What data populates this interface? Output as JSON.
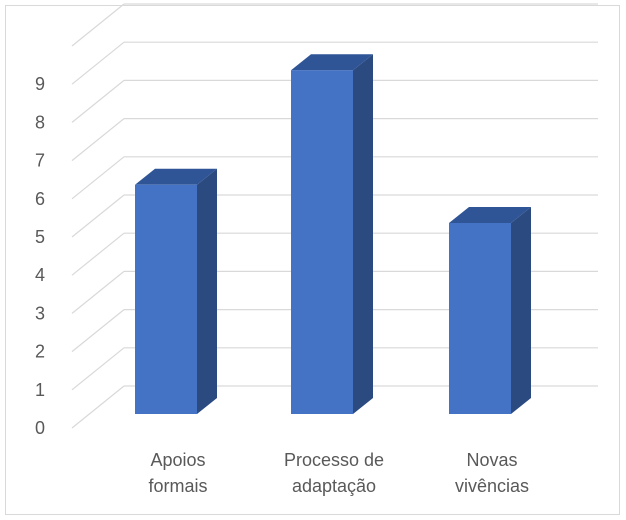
{
  "chart_data": {
    "type": "bar",
    "style": "3d-column",
    "categories": [
      [
        "Apoios",
        "formais"
      ],
      [
        "Processo de",
        "adaptação"
      ],
      [
        "Novas",
        "vivências"
      ]
    ],
    "values": [
      6,
      9,
      5
    ],
    "ylim": [
      0,
      10
    ],
    "yticks": [
      0,
      1,
      2,
      3,
      4,
      5,
      6,
      7,
      8,
      9
    ],
    "grid": true,
    "legend": "none",
    "title": "",
    "xlabel": "",
    "ylabel": "",
    "colors": {
      "front": "#4472C4",
      "side": "#2B4A80",
      "top": "#2F5597",
      "grid": "#d9d9d9",
      "text": "#595959"
    }
  }
}
